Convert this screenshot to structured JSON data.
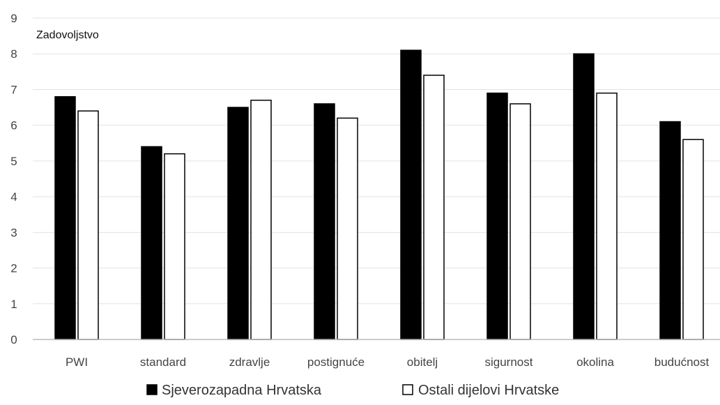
{
  "chart_data": {
    "type": "bar",
    "ylabel": "Zadovoljstvo",
    "xlabel": "",
    "ylim": [
      0,
      9
    ],
    "yticks": [
      0,
      1,
      2,
      3,
      4,
      5,
      6,
      7,
      8,
      9
    ],
    "grid": true,
    "legend_position": "bottom",
    "categories": [
      "PWI",
      "standard",
      "zdravlje",
      "postignuće",
      "obitelj",
      "sigurnost",
      "okolina",
      "budućnost"
    ],
    "series": [
      {
        "name": "Sjeverozapadna Hrvatska",
        "color": "#000000",
        "values": [
          6.8,
          5.4,
          6.5,
          6.6,
          8.1,
          6.9,
          8.0,
          6.1
        ]
      },
      {
        "name": "Ostali dijelovi Hrvatske",
        "color": "#ffffff",
        "values": [
          6.4,
          5.2,
          6.7,
          6.2,
          7.4,
          6.6,
          6.9,
          5.6
        ]
      }
    ]
  }
}
